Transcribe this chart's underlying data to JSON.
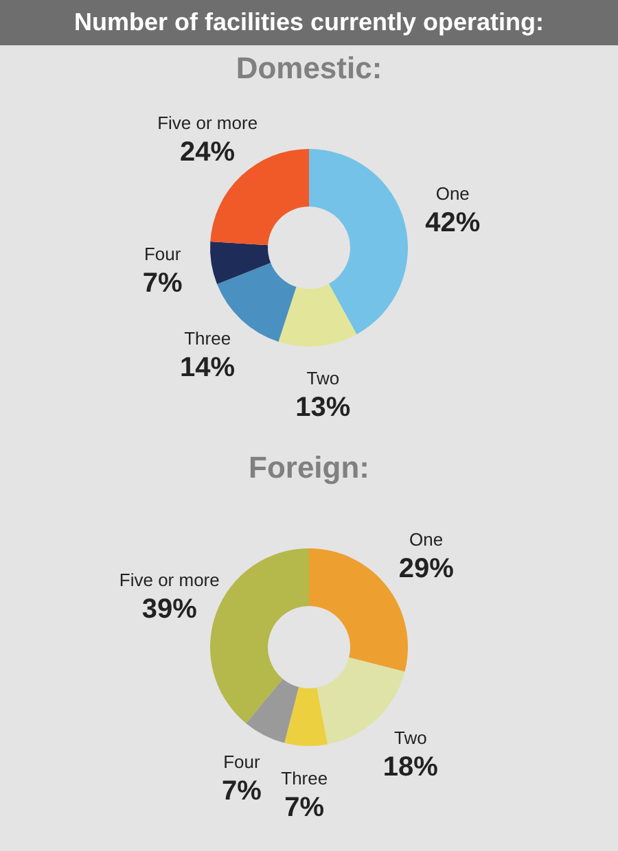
{
  "chart_data": [
    {
      "type": "donut",
      "title": "Number of facilities currently operating:",
      "subtitle": "Domestic:",
      "categories": [
        "One",
        "Two",
        "Three",
        "Four",
        "Five or more"
      ],
      "values": [
        42,
        13,
        14,
        7,
        24
      ],
      "colors": [
        "#74c2e8",
        "#e3e69a",
        "#4a90c0",
        "#1e2c5a",
        "#f05a28"
      ],
      "value_labels": [
        "42%",
        "13%",
        "14%",
        "7%",
        "24%"
      ],
      "legend": false
    },
    {
      "type": "donut",
      "title": "Foreign:",
      "categories": [
        "One",
        "Two",
        "Three",
        "Four",
        "Five or more"
      ],
      "values": [
        29,
        18,
        7,
        7,
        39
      ],
      "colors": [
        "#eda030",
        "#dfe3a8",
        "#ecd040",
        "#9a9a9a",
        "#b5b84a"
      ],
      "value_labels": [
        "29%",
        "18%",
        "7%",
        "7%",
        "39%"
      ],
      "legend": false
    }
  ]
}
